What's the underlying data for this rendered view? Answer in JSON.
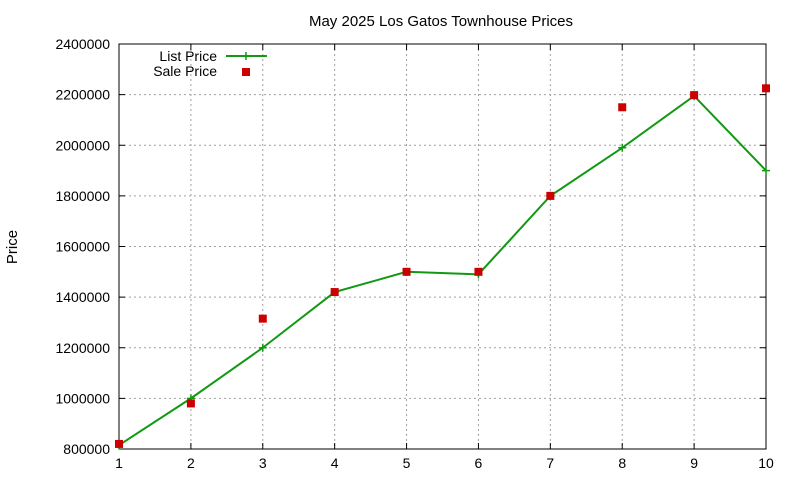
{
  "chart_data": {
    "type": "line",
    "title": "May 2025 Los Gatos Townhouse Prices",
    "xlabel": "",
    "ylabel": "Price",
    "xlim": [
      1,
      10
    ],
    "ylim": [
      800000,
      2400000
    ],
    "x_ticks": [
      "1",
      "2",
      "3",
      "4",
      "5",
      "6",
      "7",
      "8",
      "9",
      "10"
    ],
    "y_ticks": [
      "800000",
      "1000000",
      "1200000",
      "1400000",
      "1600000",
      "1800000",
      "2000000",
      "2200000",
      "2400000"
    ],
    "grid": true,
    "legend_position": "top-left",
    "series": [
      {
        "name": "List Price",
        "style": "line-with-plus-markers",
        "color": "#119911",
        "x": [
          1,
          2,
          3,
          4,
          5,
          6,
          7,
          8,
          9,
          10
        ],
        "y": [
          815000,
          1000000,
          1200000,
          1420000,
          1500000,
          1490000,
          1800000,
          1990000,
          2195000,
          1900000
        ]
      },
      {
        "name": "Sale Price",
        "style": "square-markers",
        "color": "#cc0000",
        "x": [
          1,
          2,
          3,
          4,
          5,
          6,
          7,
          8,
          9,
          10
        ],
        "y": [
          820000,
          980000,
          1315000,
          1420000,
          1500000,
          1500000,
          1800000,
          2150000,
          2198000,
          2225000
        ]
      }
    ]
  }
}
